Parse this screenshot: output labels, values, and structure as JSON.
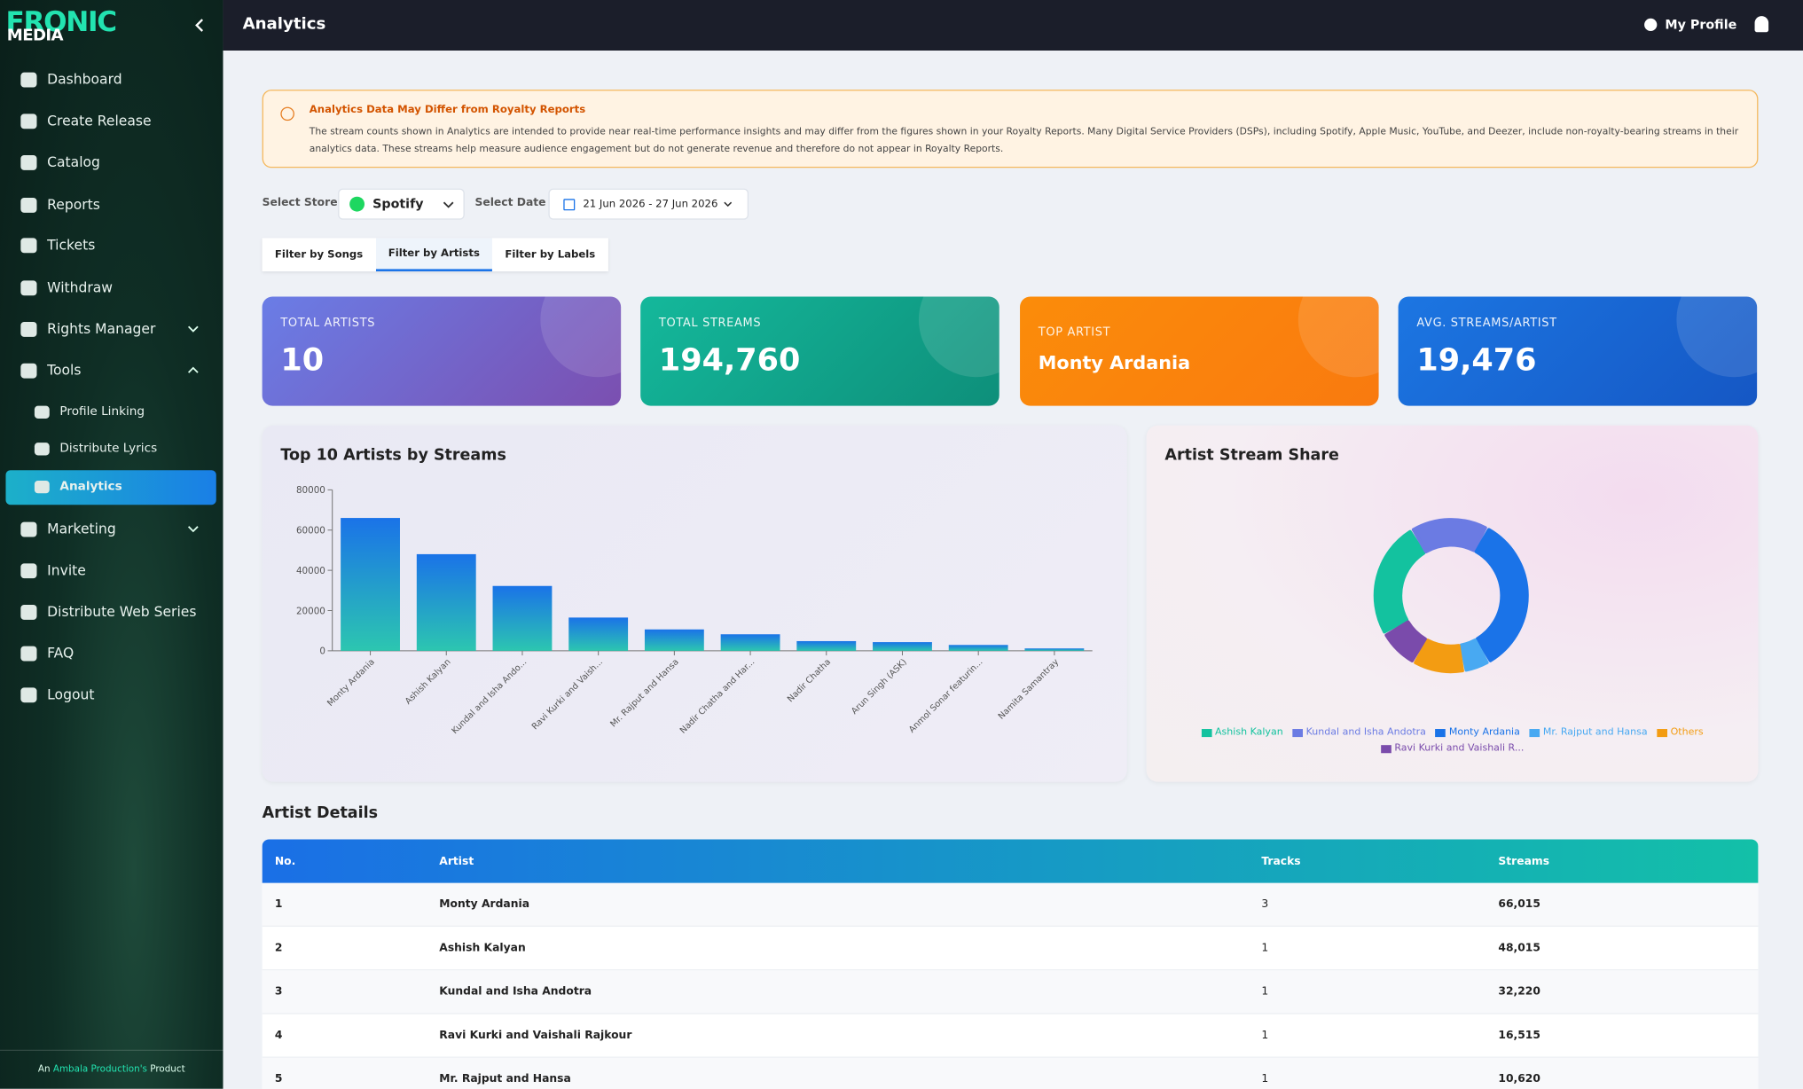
{
  "sidebar": {
    "logo_top": "FRONIC",
    "logo_bottom": "MEDIA",
    "menu": [
      "Dashboard",
      "Create Release",
      "Catalog",
      "Reports",
      "Tickets",
      "Withdraw",
      "Rights Manager",
      "Tools",
      "Profile Linking",
      "Distribute Lyrics",
      "Analytics",
      "Marketing",
      "Invite",
      "Distribute Web Series",
      "FAQ",
      "Logout"
    ],
    "footer": {
      "prefix": "An",
      "brand": "Ambala Production's",
      "suffix": "Product"
    }
  },
  "header": {
    "title": "Analytics",
    "profile": "My Profile"
  },
  "notice": {
    "title": "Analytics Data May Differ from Royalty Reports",
    "body": "The stream counts shown in Analytics are intended to provide near real-time performance insights and may differ from the figures shown in your Royalty Reports. Many Digital Service Providers (DSPs), including Spotify, Apple Music, YouTube, and Deezer, include non-royalty-bearing streams in their analytics data. These streams help measure audience engagement but do not generate revenue and therefore do not appear in Royalty Reports."
  },
  "filters": {
    "store_label": "Select Store",
    "store": "Spotify",
    "date_label": "Select Date",
    "date": "21 Jun 2026 - 27 Jun 2026"
  },
  "tabs": [
    "Filter by Songs",
    "Filter by Artists",
    "Filter by Labels"
  ],
  "cards": [
    {
      "label": "TOTAL ARTISTS",
      "value": "10"
    },
    {
      "label": "TOTAL STREAMS",
      "value": "194,760"
    },
    {
      "label": "TOP ARTIST",
      "value": "Monty Ardania"
    },
    {
      "label": "AVG. STREAMS/ARTIST",
      "value": "19,476"
    }
  ],
  "chart_data": [
    {
      "type": "bar",
      "title": "Top 10 Artists by Streams",
      "categories": [
        "Monty Ardania",
        "Ashish Kalyan",
        "Kundal and Isha Ando...",
        "Ravi Kurki and Vaish...",
        "Mr. Rajput and Hansa",
        "Nadir Chatha and Har...",
        "Nadir Chatha",
        "Arun Singh (ASK)",
        "Anmol Sonar featurin...",
        "Namita Samantray"
      ],
      "values": [
        66015,
        48015,
        32220,
        16515,
        10620,
        8200,
        4800,
        4300,
        2900,
        1175
      ],
      "color": "#1a73e8",
      "ylim": [
        0,
        80000
      ],
      "yticks": [
        0,
        20000,
        40000,
        60000,
        80000
      ],
      "grid": false
    },
    {
      "type": "donut",
      "title": "Artist Stream Share",
      "series": [
        {
          "name": "Ashish Kalyan",
          "color": "#13c29f",
          "values": [
            48015
          ]
        },
        {
          "name": "Kundal and Isha Andotra",
          "color": "#6b7be3",
          "values": [
            32220
          ]
        },
        {
          "name": "Monty Ardania",
          "color": "#1a73e8",
          "values": [
            66015
          ]
        },
        {
          "name": "Mr. Rajput and Hansa",
          "color": "#48a9f2",
          "values": [
            10620
          ]
        },
        {
          "name": "Others",
          "color": "#f39c12",
          "values": [
            21375
          ]
        },
        {
          "name": "Ravi Kurki and Vaishali R...",
          "color": "#7a4bab",
          "values": [
            16515
          ]
        }
      ]
    }
  ],
  "table": {
    "title": "Artist Details",
    "columns": [
      "No.",
      "Artist",
      "Tracks",
      "Streams"
    ],
    "rows": [
      [
        1,
        "Monty Ardania",
        3,
        "66,015"
      ],
      [
        2,
        "Ashish Kalyan",
        1,
        "48,015"
      ],
      [
        3,
        "Kundal and Isha Andotra",
        1,
        "32,220"
      ],
      [
        4,
        "Ravi Kurki and Vaishali Rajkour",
        1,
        "16,515"
      ],
      [
        5,
        "Mr. Rajput and Hansa",
        1,
        "10,620"
      ]
    ]
  }
}
